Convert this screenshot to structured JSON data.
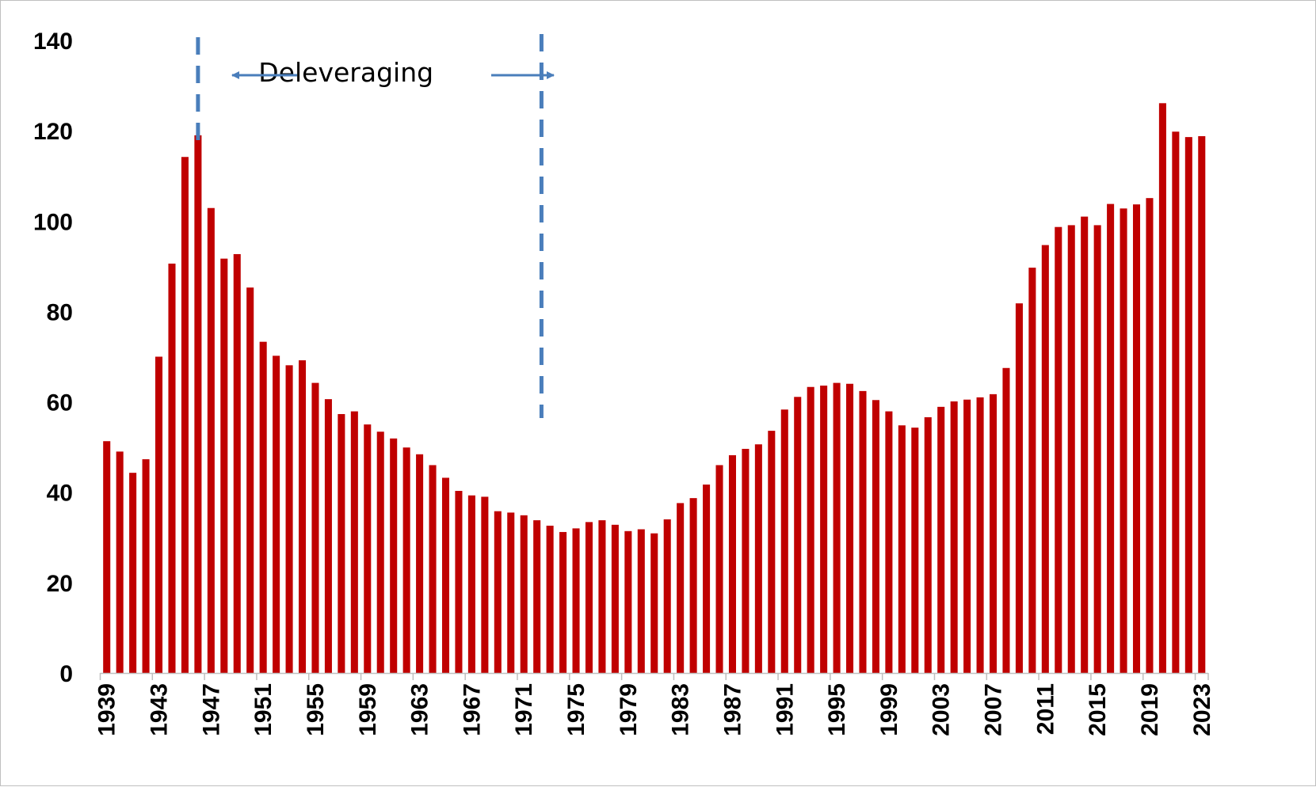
{
  "chart_data": {
    "type": "bar",
    "title": "",
    "xlabel": "",
    "ylabel": "",
    "ylim": [
      0,
      140
    ],
    "yticks": [
      0,
      20,
      40,
      60,
      80,
      100,
      120,
      140
    ],
    "xtick_labels": [
      "1939",
      "1943",
      "1947",
      "1951",
      "1955",
      "1959",
      "1963",
      "1967",
      "1971",
      "1975",
      "1979",
      "1983",
      "1987",
      "1991",
      "1995",
      "1999",
      "2003",
      "2007",
      "2011",
      "2015",
      "2019",
      "2023"
    ],
    "categories": [
      "1939",
      "1940",
      "1941",
      "1942",
      "1943",
      "1944",
      "1945",
      "1946",
      "1947",
      "1948",
      "1949",
      "1950",
      "1951",
      "1952",
      "1953",
      "1954",
      "1955",
      "1956",
      "1957",
      "1958",
      "1959",
      "1960",
      "1961",
      "1962",
      "1963",
      "1964",
      "1965",
      "1966",
      "1967",
      "1968",
      "1969",
      "1970",
      "1971",
      "1972",
      "1973",
      "1974",
      "1975",
      "1976",
      "1977",
      "1978",
      "1979",
      "1980",
      "1981",
      "1982",
      "1983",
      "1984",
      "1985",
      "1986",
      "1987",
      "1988",
      "1989",
      "1990",
      "1991",
      "1992",
      "1993",
      "1994",
      "1995",
      "1996",
      "1997",
      "1998",
      "1999",
      "2000",
      "2001",
      "2002",
      "2003",
      "2004",
      "2005",
      "2006",
      "2007",
      "2008",
      "2009",
      "2010",
      "2011",
      "2012",
      "2013",
      "2014",
      "2015",
      "2016",
      "2017",
      "2018",
      "2019",
      "2020",
      "2021",
      "2022",
      "2023"
    ],
    "series": [
      {
        "values": [
          51.3,
          49.0,
          44.3,
          47.3,
          70.0,
          90.6,
          114.2,
          119.0,
          102.9,
          91.7,
          92.7,
          85.3,
          73.3,
          70.2,
          68.1,
          69.2,
          64.2,
          60.6,
          57.3,
          57.9,
          55.0,
          53.4,
          51.9,
          49.9,
          48.4,
          46.0,
          43.2,
          40.3,
          39.3,
          39.0,
          35.8,
          35.5,
          34.9,
          33.8,
          32.6,
          31.2,
          32.0,
          33.4,
          33.8,
          32.8,
          31.4,
          31.8,
          30.9,
          34.0,
          37.6,
          38.7,
          41.7,
          46.0,
          48.2,
          49.6,
          50.6,
          53.6,
          58.3,
          61.1,
          63.3,
          63.6,
          64.2,
          64.0,
          62.4,
          60.4,
          57.9,
          54.8,
          54.3,
          56.6,
          58.9,
          60.1,
          60.5,
          61.0,
          61.7,
          67.5,
          81.8,
          89.7,
          94.7,
          98.7,
          99.1,
          101.0,
          99.1,
          103.8,
          102.8,
          103.7,
          105.1,
          126.1,
          119.8,
          118.6,
          118.8
        ],
        "color": "#c00000"
      }
    ],
    "grid": false,
    "legend": "none",
    "annotations": [
      {
        "text": "Deleveraging",
        "from_year": "1946",
        "to_year": "1972",
        "line_color": "#4a7ebb",
        "line_style": "dashed"
      }
    ]
  }
}
